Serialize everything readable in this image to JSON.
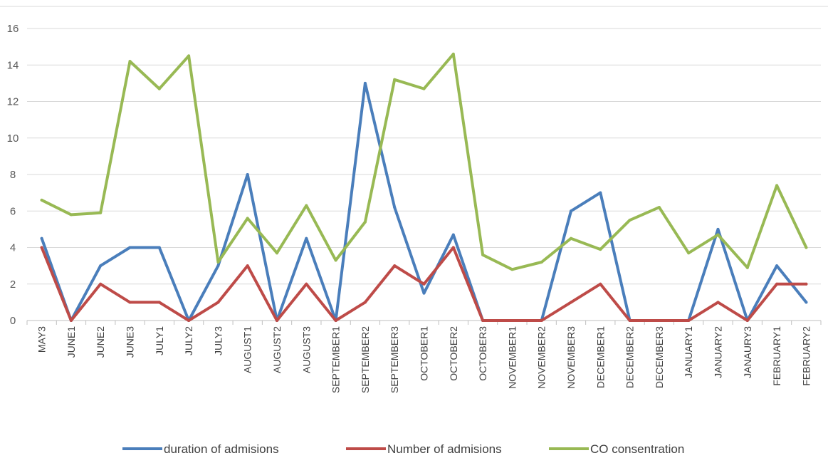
{
  "chart_data": {
    "type": "line",
    "title": "",
    "xlabel": "",
    "ylabel": "",
    "ylim": [
      0,
      16
    ],
    "yticks": [
      0,
      2,
      4,
      6,
      8,
      10,
      12,
      14,
      16
    ],
    "grid": true,
    "legend_position": "bottom",
    "categories": [
      "MAY3",
      "JUNE1",
      "JUNE2",
      "JUNE3",
      "JULY1",
      "JULY2",
      "JULY3",
      "AUGUST1",
      "AUGUST2",
      "AUGUST3",
      "SEPTEMBER1",
      "SEPTEMBER2",
      "SEPTEMBER3",
      "OCTOBER1",
      "OCTOBER2",
      "OCTOBER3",
      "NOVEMBER1",
      "NOVEMBER2",
      "NOVEMBER3",
      "DECEMBER1",
      "DECEMBER2",
      "DECEMBER3",
      "JANUARY1",
      "JANUARY2",
      "JANAURY3",
      "FEBRUARY1",
      "FEBRUARY2"
    ],
    "series": [
      {
        "name": "duration of admisions",
        "color": "#4a7ebb",
        "values": [
          4.5,
          0,
          3,
          4,
          4,
          0,
          3,
          8,
          0,
          4.5,
          0,
          13,
          6.2,
          1.5,
          4.7,
          0,
          0,
          0,
          6,
          7,
          0,
          0,
          0,
          5,
          0,
          3,
          1
        ]
      },
      {
        "name": "Number of admisions",
        "color": "#be4b48",
        "values": [
          4,
          0,
          2,
          1,
          1,
          0,
          1,
          3,
          0,
          2,
          0,
          1,
          3,
          2,
          4,
          0,
          0,
          0,
          1,
          2,
          0,
          0,
          0,
          1,
          0,
          2,
          2
        ]
      },
      {
        "name": "CO consentration",
        "color": "#98b954",
        "values": [
          6.6,
          5.8,
          5.9,
          14.2,
          12.7,
          14.5,
          3.2,
          5.6,
          3.7,
          6.3,
          3.3,
          5.4,
          13.2,
          12.7,
          14.6,
          3.6,
          2.8,
          3.2,
          4.5,
          3.9,
          5.5,
          6.2,
          3.7,
          4.7,
          2.9,
          7.4,
          4
        ]
      }
    ]
  }
}
